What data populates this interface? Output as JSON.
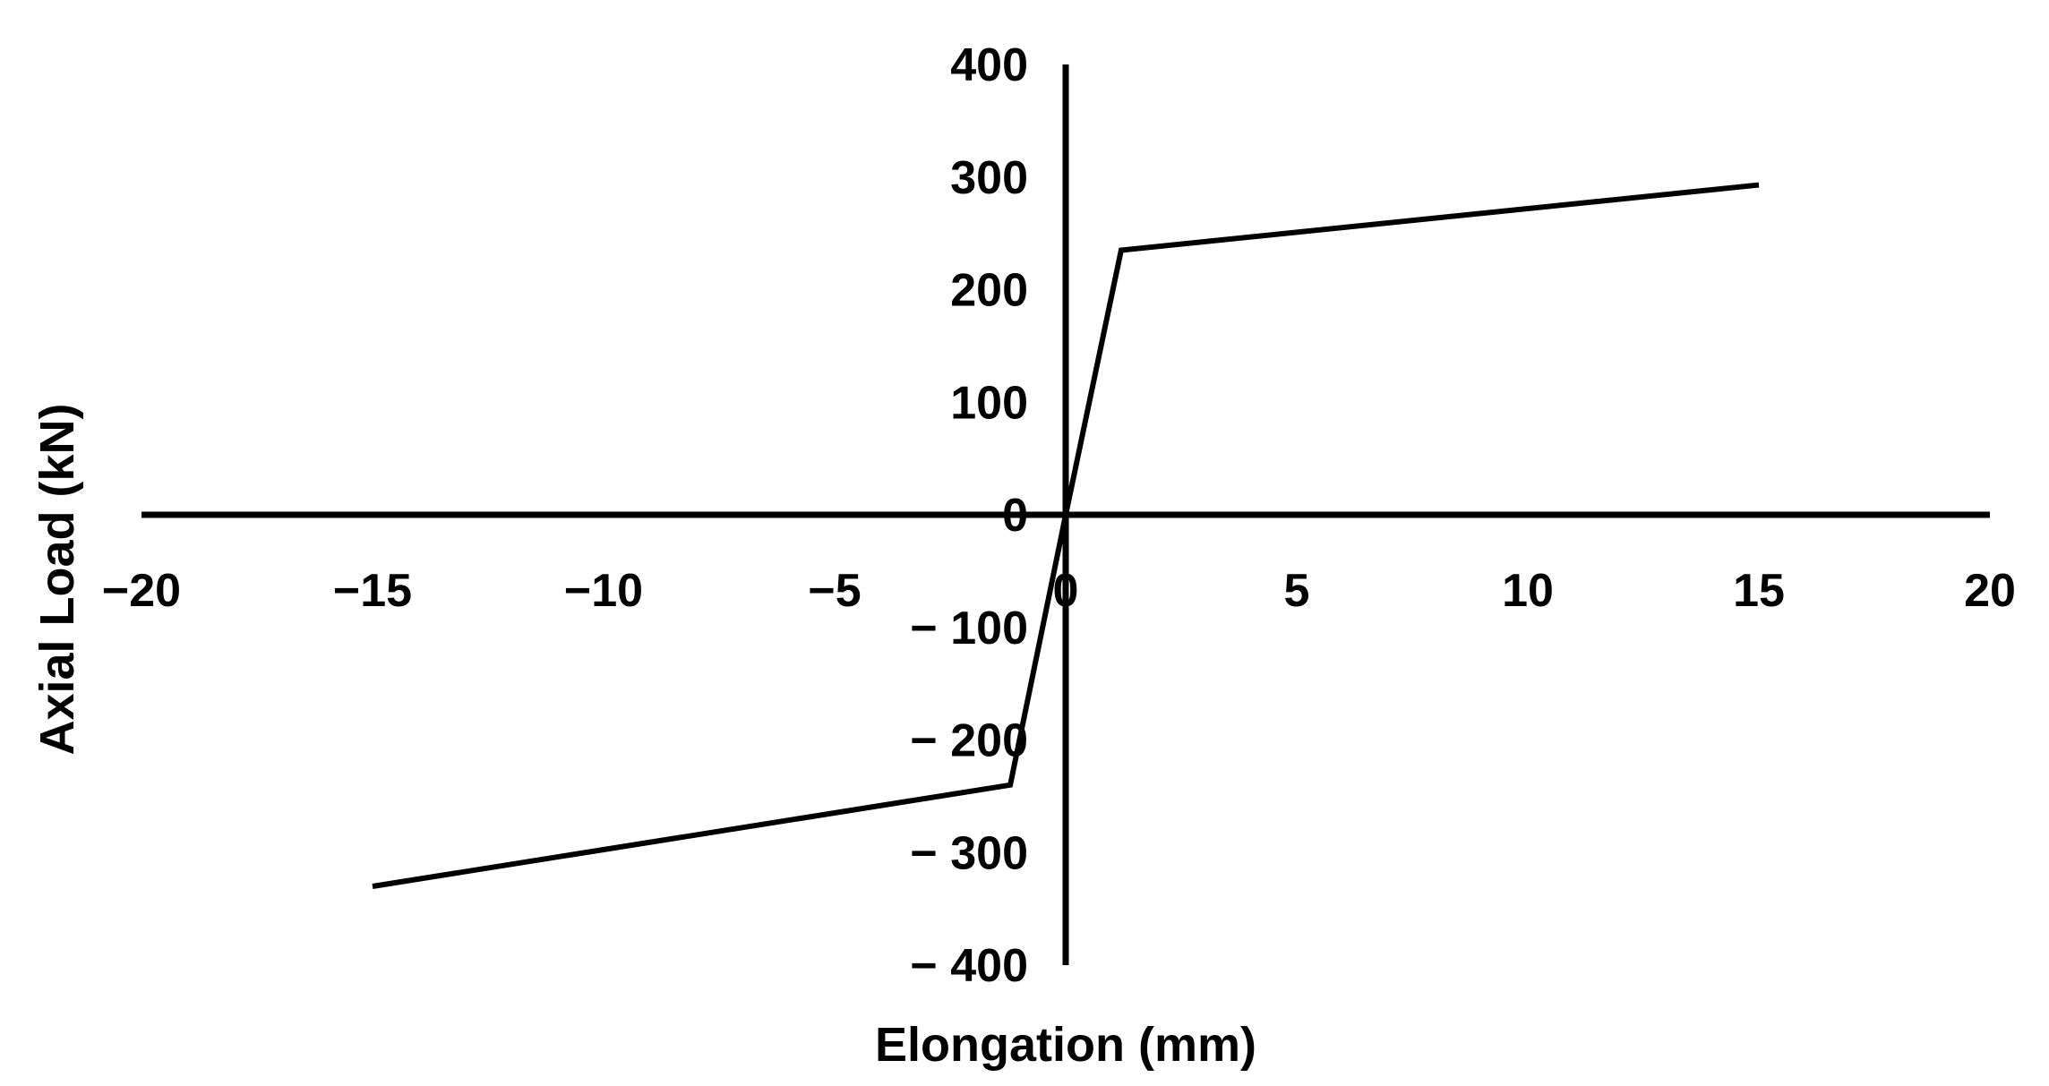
{
  "chart_data": {
    "type": "line",
    "title": "",
    "xlabel": "Elongation (mm)",
    "ylabel": "Axial Load (kN)",
    "xlim": [
      -20,
      20
    ],
    "ylim": [
      -400,
      400
    ],
    "xticks": [
      -20,
      -15,
      -10,
      -5,
      0,
      5,
      10,
      15,
      20
    ],
    "xtick_labels": [
      "−20",
      "−15",
      "−10",
      "−5",
      "0",
      "5",
      "10",
      "15",
      "20"
    ],
    "yticks": [
      400,
      300,
      200,
      100,
      0,
      -100,
      -200,
      -300,
      -400
    ],
    "ytick_labels": [
      "400",
      "300",
      "200",
      "100",
      "0",
      "− 100",
      "− 200",
      "− 300",
      "− 400"
    ],
    "grid": false,
    "series": [
      {
        "x": [
          -15,
          -1.2,
          0,
          1.2,
          15
        ],
        "y": [
          -330,
          -240,
          0,
          235,
          293
        ]
      }
    ],
    "colors": {
      "line": "#000000",
      "axis": "#000000",
      "background": "#ffffff"
    }
  }
}
